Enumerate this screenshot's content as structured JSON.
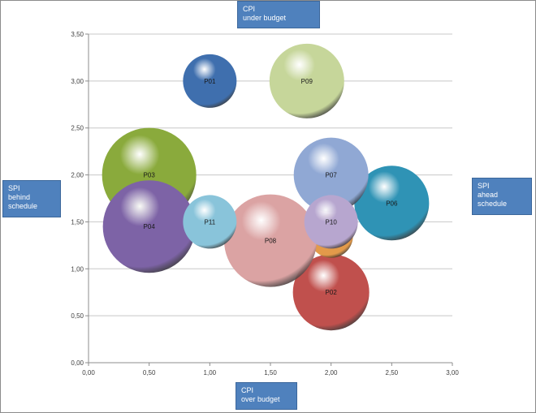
{
  "chart_data": {
    "type": "bubble",
    "xlim": [
      0,
      3
    ],
    "ylim": [
      0,
      3.5
    ],
    "x_ticks": [
      "0,00",
      "0,50",
      "1,00",
      "1,50",
      "2,00",
      "2,50",
      "3,00"
    ],
    "y_ticks": [
      "0,00",
      "0,50",
      "1,00",
      "1,50",
      "2,00",
      "2,50",
      "3,00",
      "3,50"
    ],
    "grid": "horizontal",
    "bubbles": [
      {
        "label": "P03",
        "x": 0.5,
        "y": 2.0,
        "size": 58,
        "color": "#8aaa3c"
      },
      {
        "label": "P01",
        "x": 1.0,
        "y": 3.0,
        "size": 33,
        "color": "#3f6fae"
      },
      {
        "label": "P09",
        "x": 1.8,
        "y": 3.0,
        "size": 46,
        "color": "#c6d69a"
      },
      {
        "label": "P06",
        "x": 2.5,
        "y": 1.7,
        "size": 46,
        "color": "#2f93b5"
      },
      {
        "label": "P07",
        "x": 2.0,
        "y": 2.0,
        "size": 46,
        "color": "#90a8d4"
      },
      {
        "label": "P02",
        "x": 2.0,
        "y": 0.75,
        "size": 47,
        "color": "#c0504d"
      },
      {
        "label": "P06",
        "x": 2.0,
        "y": 1.35,
        "size": 27,
        "color": "#e39a4a"
      },
      {
        "label": "P08",
        "x": 1.5,
        "y": 1.3,
        "size": 57,
        "color": "#dba3a3"
      },
      {
        "label": "P04",
        "x": 0.5,
        "y": 1.45,
        "size": 57,
        "color": "#7d63a6"
      },
      {
        "label": "P11",
        "x": 1.0,
        "y": 1.5,
        "size": 33,
        "color": "#89c4da"
      },
      {
        "label": "P10",
        "x": 2.0,
        "y": 1.5,
        "size": 33,
        "color": "#b7a6cf"
      }
    ]
  },
  "callouts": {
    "top": [
      "CPI",
      "under budget"
    ],
    "bottom": [
      "CPI",
      "over budget"
    ],
    "left": [
      "SPI",
      "behind",
      "schedule"
    ],
    "right": [
      "SPI",
      "ahead",
      "schedule"
    ]
  }
}
